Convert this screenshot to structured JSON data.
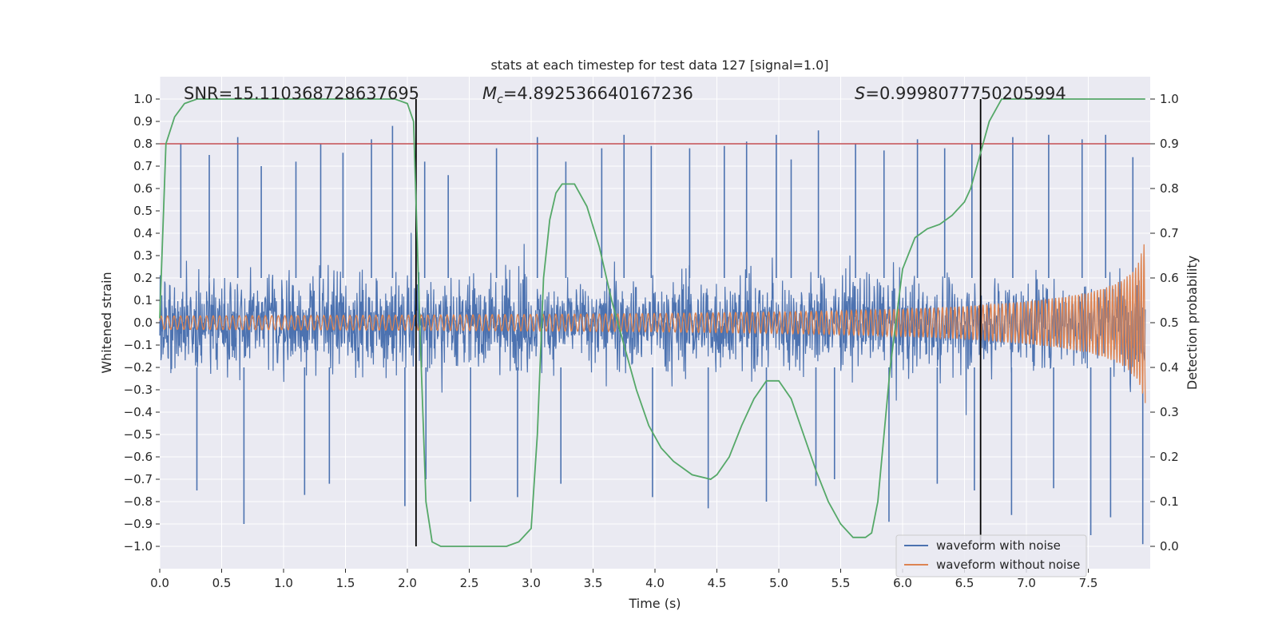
{
  "chart_data": {
    "type": "line",
    "title": "stats at each timestep for test data 127 [signal=1.0]",
    "xlabel": "Time (s)",
    "ylabel": "Whitened strain",
    "ylabel_right": "Detection probability",
    "xlim": [
      0.0,
      8.0
    ],
    "ylim": [
      -1.1,
      1.1
    ],
    "ylim_right": [
      -0.05,
      1.05
    ],
    "x_ticks": [
      0.0,
      0.5,
      1.0,
      1.5,
      2.0,
      2.5,
      3.0,
      3.5,
      4.0,
      4.5,
      5.0,
      5.5,
      6.0,
      6.5,
      7.0,
      7.5
    ],
    "x_tick_labels": [
      "0.0",
      "0.5",
      "1.0",
      "1.5",
      "2.0",
      "2.5",
      "3.0",
      "3.5",
      "4.0",
      "4.5",
      "5.0",
      "5.5",
      "6.0",
      "6.5",
      "7.0",
      "7.5"
    ],
    "y_ticks": [
      -1.0,
      -0.9,
      -0.8,
      -0.7,
      -0.6,
      -0.5,
      -0.4,
      -0.3,
      -0.2,
      -0.1,
      0.0,
      0.1,
      0.2,
      0.3,
      0.4,
      0.5,
      0.6,
      0.7,
      0.8,
      0.9,
      1.0
    ],
    "y_tick_labels": [
      "−1.0",
      "−0.9",
      "−0.8",
      "−0.7",
      "−0.6",
      "−0.5",
      "−0.4",
      "−0.3",
      "−0.2",
      "−0.1",
      "0.0",
      "0.1",
      "0.2",
      "0.3",
      "0.4",
      "0.5",
      "0.6",
      "0.7",
      "0.8",
      "0.9",
      "1.0"
    ],
    "y_ticks_right": [
      0.0,
      0.1,
      0.2,
      0.3,
      0.4,
      0.5,
      0.6,
      0.7,
      0.8,
      0.9,
      1.0
    ],
    "y_tick_labels_right": [
      "0.0",
      "0.1",
      "0.2",
      "0.3",
      "0.4",
      "0.5",
      "0.6",
      "0.7",
      "0.8",
      "0.9",
      "1.0"
    ],
    "grid": true,
    "background": "#eaeaf2",
    "annotations": {
      "snr": "SNR=15.110368728637695",
      "mc_symbol": "M",
      "mc_subscript": "c",
      "mc_value": "=4.892536640167236",
      "s_symbol": "S",
      "s_value": "=0.9998077750205994"
    },
    "threshold_line": {
      "y": 0.8,
      "color": "#c44e52"
    },
    "vertical_lines": [
      {
        "x": 2.07,
        "ymin": -1.0,
        "ymax": 1.0,
        "color": "#000000"
      },
      {
        "x": 6.63,
        "ymin": -1.0,
        "ymax": 1.0,
        "color": "#000000"
      }
    ],
    "series": [
      {
        "name": "waveform with noise",
        "color": "#4c72b0",
        "axis": "left",
        "description_envelope": {
          "typical_low": -0.45,
          "typical_high": 0.45
        },
        "peaks_x": [
          0.17,
          0.4,
          0.63,
          0.82,
          1.1,
          1.3,
          1.48,
          1.71,
          1.88,
          2.14,
          2.33,
          2.72,
          3.05,
          3.28,
          3.57,
          3.75,
          3.97,
          4.28,
          4.56,
          4.74,
          4.98,
          5.1,
          5.32,
          5.62,
          5.85,
          6.12,
          6.34,
          6.56,
          6.89,
          7.18,
          7.45,
          7.64,
          7.86
        ],
        "peaks_y": [
          0.8,
          0.75,
          0.83,
          0.7,
          0.72,
          0.8,
          0.76,
          0.82,
          0.88,
          0.72,
          0.66,
          0.78,
          0.83,
          0.72,
          0.78,
          0.84,
          0.79,
          0.78,
          0.79,
          0.81,
          0.84,
          0.73,
          0.86,
          0.8,
          0.77,
          0.82,
          0.78,
          0.8,
          0.83,
          0.84,
          0.82,
          0.84,
          0.74
        ],
        "troughs_x": [
          0.3,
          0.68,
          1.17,
          1.37,
          1.98,
          2.15,
          2.51,
          2.89,
          3.24,
          3.98,
          4.43,
          4.9,
          5.3,
          5.45,
          5.89,
          6.28,
          6.58,
          6.88,
          7.22,
          7.52,
          7.68,
          7.94
        ],
        "troughs_y": [
          -0.75,
          -0.9,
          -0.77,
          -0.72,
          -0.82,
          -0.7,
          -0.8,
          -0.78,
          -0.72,
          -0.78,
          -0.83,
          -0.8,
          -0.73,
          -0.7,
          -0.89,
          -0.72,
          -0.75,
          -0.86,
          -0.74,
          -0.95,
          -0.87,
          -0.99
        ]
      },
      {
        "name": "waveform without noise",
        "color": "#dd8452",
        "axis": "left",
        "amplitude_x": [
          0.0,
          1.0,
          2.0,
          3.0,
          4.0,
          5.0,
          5.5,
          6.0,
          6.5,
          7.0,
          7.3,
          7.5,
          7.7,
          7.8,
          7.9,
          7.96
        ],
        "amplitude_y": [
          0.03,
          0.032,
          0.034,
          0.037,
          0.041,
          0.048,
          0.053,
          0.061,
          0.073,
          0.095,
          0.115,
          0.135,
          0.17,
          0.2,
          0.26,
          0.37
        ]
      },
      {
        "name": "Detection probability",
        "color": "#55a868",
        "axis": "right",
        "x": [
          0.0,
          0.05,
          0.12,
          0.2,
          0.3,
          0.5,
          1.0,
          1.5,
          1.9,
          2.0,
          2.05,
          2.1,
          2.15,
          2.2,
          2.27,
          2.35,
          2.5,
          2.8,
          2.9,
          3.0,
          3.05,
          3.1,
          3.15,
          3.2,
          3.25,
          3.35,
          3.45,
          3.55,
          3.65,
          3.75,
          3.85,
          3.95,
          4.05,
          4.15,
          4.3,
          4.45,
          4.5,
          4.6,
          4.7,
          4.8,
          4.9,
          5.0,
          5.1,
          5.2,
          5.3,
          5.4,
          5.5,
          5.6,
          5.7,
          5.75,
          5.8,
          5.9,
          6.0,
          6.1,
          6.2,
          6.3,
          6.4,
          6.5,
          6.55,
          6.6,
          6.65,
          6.7,
          6.8,
          6.9,
          7.0,
          7.5,
          7.96
        ],
        "y": [
          0.51,
          0.9,
          0.96,
          0.99,
          1.0,
          1.0,
          1.0,
          1.0,
          1.0,
          0.99,
          0.95,
          0.5,
          0.1,
          0.01,
          0.0,
          0.0,
          0.0,
          0.0,
          0.01,
          0.04,
          0.25,
          0.6,
          0.73,
          0.79,
          0.81,
          0.81,
          0.76,
          0.67,
          0.55,
          0.45,
          0.35,
          0.27,
          0.22,
          0.19,
          0.16,
          0.15,
          0.16,
          0.2,
          0.27,
          0.33,
          0.37,
          0.37,
          0.33,
          0.25,
          0.17,
          0.1,
          0.05,
          0.02,
          0.02,
          0.03,
          0.1,
          0.4,
          0.62,
          0.69,
          0.71,
          0.72,
          0.74,
          0.77,
          0.8,
          0.85,
          0.9,
          0.95,
          1.0,
          1.0,
          1.0,
          1.0,
          1.0
        ]
      }
    ],
    "legend": {
      "location": "lower-right",
      "entries": [
        "waveform with noise",
        "waveform without noise"
      ]
    }
  }
}
